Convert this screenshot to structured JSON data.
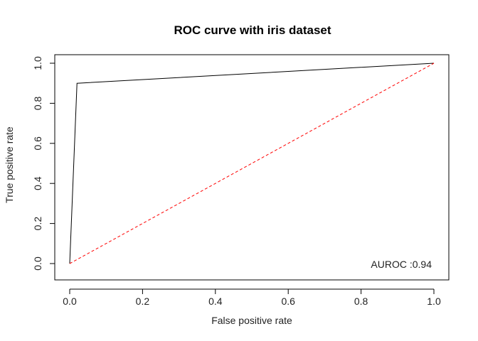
{
  "chart_data": {
    "type": "line",
    "title": "ROC curve with iris dataset",
    "xlabel": "False positive rate",
    "ylabel": "True positive rate",
    "xlim": [
      0,
      1
    ],
    "ylim": [
      0,
      1
    ],
    "xticks": [
      "0.0",
      "0.2",
      "0.4",
      "0.6",
      "0.8",
      "1.0"
    ],
    "yticks": [
      "0.0",
      "0.2",
      "0.4",
      "0.6",
      "0.8",
      "1.0"
    ],
    "grid": false,
    "legend": "none",
    "series": [
      {
        "x": [
          0,
          0.02,
          1
        ],
        "y": [
          0,
          0.9,
          1
        ],
        "color": "#000000",
        "style": "solid"
      },
      {
        "x": [
          0,
          1
        ],
        "y": [
          0,
          1
        ],
        "color": "#ff0000",
        "style": "dashed"
      }
    ],
    "annotation": "AUROC :0.94"
  }
}
